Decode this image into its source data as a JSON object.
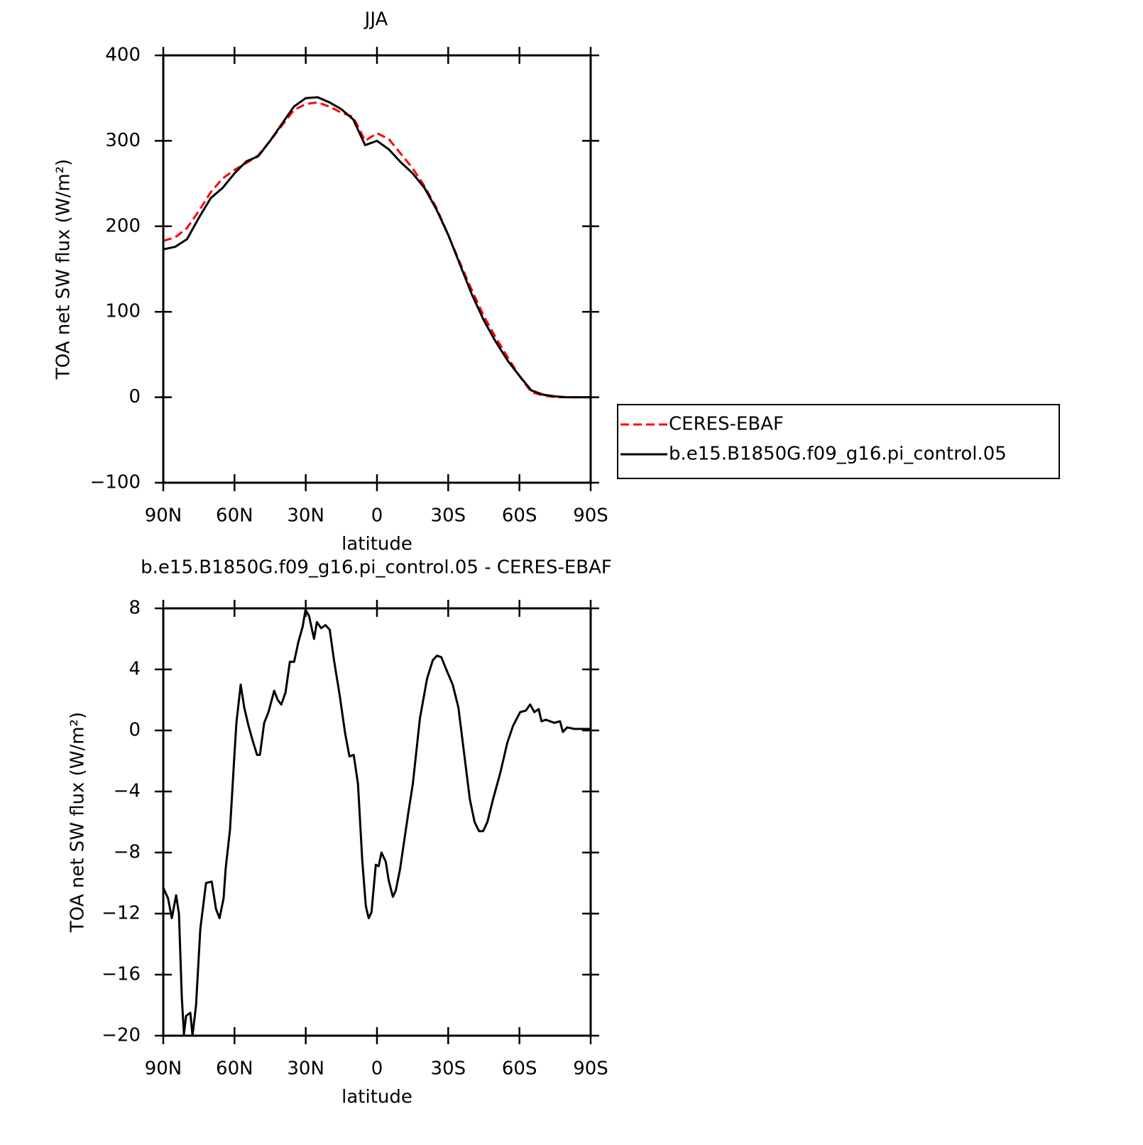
{
  "chart_data": [
    {
      "type": "line",
      "title": "JJA",
      "xlabel": "latitude",
      "ylabel": "TOA net SW flux (W/m²)",
      "xlim": [
        90,
        -90
      ],
      "ylim": [
        -100,
        400
      ],
      "xticks": [
        {
          "value": 90,
          "label": "90N"
        },
        {
          "value": 60,
          "label": "60N"
        },
        {
          "value": 30,
          "label": "30N"
        },
        0,
        {
          "value": -30,
          "label": "30S"
        },
        {
          "value": -60,
          "label": "60S"
        },
        {
          "value": -90,
          "label": "90S"
        }
      ],
      "yticks": [
        {
          "value": -100,
          "label": "−100"
        },
        0,
        100,
        200,
        300,
        400
      ],
      "legend": "right",
      "x": [
        90,
        85,
        80,
        75,
        70,
        65,
        60,
        55,
        50,
        45,
        40,
        35,
        30,
        25,
        20,
        15,
        10,
        5,
        0,
        -5,
        -10,
        -15,
        -20,
        -25,
        -30,
        -35,
        -40,
        -45,
        -50,
        -55,
        -60,
        -65,
        -70,
        -75,
        -80,
        -85,
        -90
      ],
      "series": [
        {
          "name": "CERES-EBAF",
          "color": "#ff0000",
          "linestyle": "dashed",
          "values": [
            183,
            187,
            198,
            218,
            240,
            256,
            266,
            274,
            283,
            300,
            318,
            336,
            343,
            345,
            340,
            333,
            328,
            300,
            309,
            302,
            285,
            268,
            247,
            222,
            190,
            157,
            125,
            95,
            70,
            47,
            25,
            6,
            2,
            0,
            0,
            0,
            0
          ]
        },
        {
          "name": "b.e15.B1850G.f09_g16.pi_control.05",
          "color": "#000000",
          "linestyle": "solid",
          "values": [
            173,
            176,
            185,
            210,
            233,
            245,
            262,
            276,
            282,
            300,
            320,
            340,
            350,
            351,
            345,
            337,
            325,
            295,
            300,
            290,
            275,
            262,
            245,
            220,
            190,
            155,
            120,
            90,
            65,
            43,
            25,
            8,
            3,
            1,
            0,
            0,
            0
          ]
        }
      ]
    },
    {
      "type": "line",
      "title": "b.e15.B1850G.f09_g16.pi_control.05 - CERES-EBAF",
      "xlabel": "latitude",
      "ylabel": "TOA net SW flux (W/m²)",
      "xlim": [
        90,
        -90
      ],
      "ylim": [
        -20,
        8
      ],
      "xticks": [
        {
          "value": 90,
          "label": "90N"
        },
        {
          "value": 60,
          "label": "60N"
        },
        {
          "value": 30,
          "label": "30N"
        },
        0,
        {
          "value": -30,
          "label": "30S"
        },
        {
          "value": -60,
          "label": "60S"
        },
        {
          "value": -90,
          "label": "90S"
        }
      ],
      "yticks": [
        {
          "value": -20,
          "label": "−20"
        },
        {
          "value": -16,
          "label": "−16"
        },
        {
          "value": -12,
          "label": "−12"
        },
        {
          "value": -8,
          "label": "−8"
        },
        {
          "value": -4,
          "label": "−4"
        },
        0,
        4,
        8
      ],
      "color": "#000000",
      "x": [
        90,
        88,
        86.4,
        84.6,
        83.4,
        82.2,
        81.3,
        80.4,
        78.6,
        77.7,
        76.2,
        74.4,
        72,
        69.6,
        67.8,
        66.3,
        64.6,
        63.7,
        61.9,
        60,
        59.2,
        57.4,
        55.9,
        54.1,
        52.3,
        50.5,
        49.3,
        47.5,
        45.7,
        43.3,
        41.8,
        40.3,
        38.5,
        36.7,
        34.9,
        33.1,
        31.3,
        30.1,
        28.6,
        26.5,
        25.3,
        23.5,
        21.7,
        19.9,
        18.1,
        15.7,
        13.4,
        11.6,
        9.8,
        8,
        6.2,
        4.7,
        3.5,
        2.3,
        0.5,
        -0.7,
        -1.9,
        -3.7,
        -4.9,
        -6.7,
        -7.9,
        -9.7,
        -11.5,
        -13.3,
        -15.1,
        -18.1,
        -21.1,
        -23.5,
        -25.3,
        -27.1,
        -28.9,
        -31.9,
        -34.3,
        -36.7,
        -39.1,
        -41.1,
        -43,
        -44.7,
        -46.5,
        -48.9,
        -51.9,
        -54.9,
        -57.3,
        -60.3,
        -62.7,
        -64.5,
        -66.3,
        -68.1,
        -69.3,
        -71.1,
        -74.7,
        -77.1,
        -78.3,
        -80.1,
        -83.1,
        -90
      ],
      "values": [
        -10.3,
        -11,
        -12.3,
        -10.8,
        -12,
        -17.5,
        -19.9,
        -18.7,
        -18.5,
        -20,
        -18,
        -13,
        -10,
        -9.9,
        -11.7,
        -12.3,
        -11,
        -9,
        -6.5,
        -1.5,
        0.5,
        3,
        1.5,
        0.3,
        -0.7,
        -1.6,
        -1.6,
        0.5,
        1.2,
        2.6,
        2,
        1.7,
        2.5,
        4.5,
        4.5,
        5.8,
        6.8,
        7.9,
        7.5,
        6,
        7.1,
        6.7,
        6.9,
        6.6,
        4.6,
        2.3,
        -0.2,
        -1.7,
        -1.6,
        -3.5,
        -8.5,
        -11.5,
        -12.3,
        -11.9,
        -8.8,
        -8.9,
        -8,
        -8.6,
        -9.8,
        -10.9,
        -10.5,
        -9.1,
        -7.2,
        -5.3,
        -3.5,
        0.8,
        3.4,
        4.6,
        4.9,
        4.8,
        4.1,
        3,
        1.5,
        -1.5,
        -4.5,
        -6,
        -6.6,
        -6.6,
        -6,
        -4.5,
        -2.8,
        -0.8,
        0.3,
        1.2,
        1.3,
        1.7,
        1.2,
        1.4,
        0.6,
        0.7,
        0.5,
        0.6,
        -0.1,
        0.2,
        0.1,
        0.1
      ]
    }
  ]
}
